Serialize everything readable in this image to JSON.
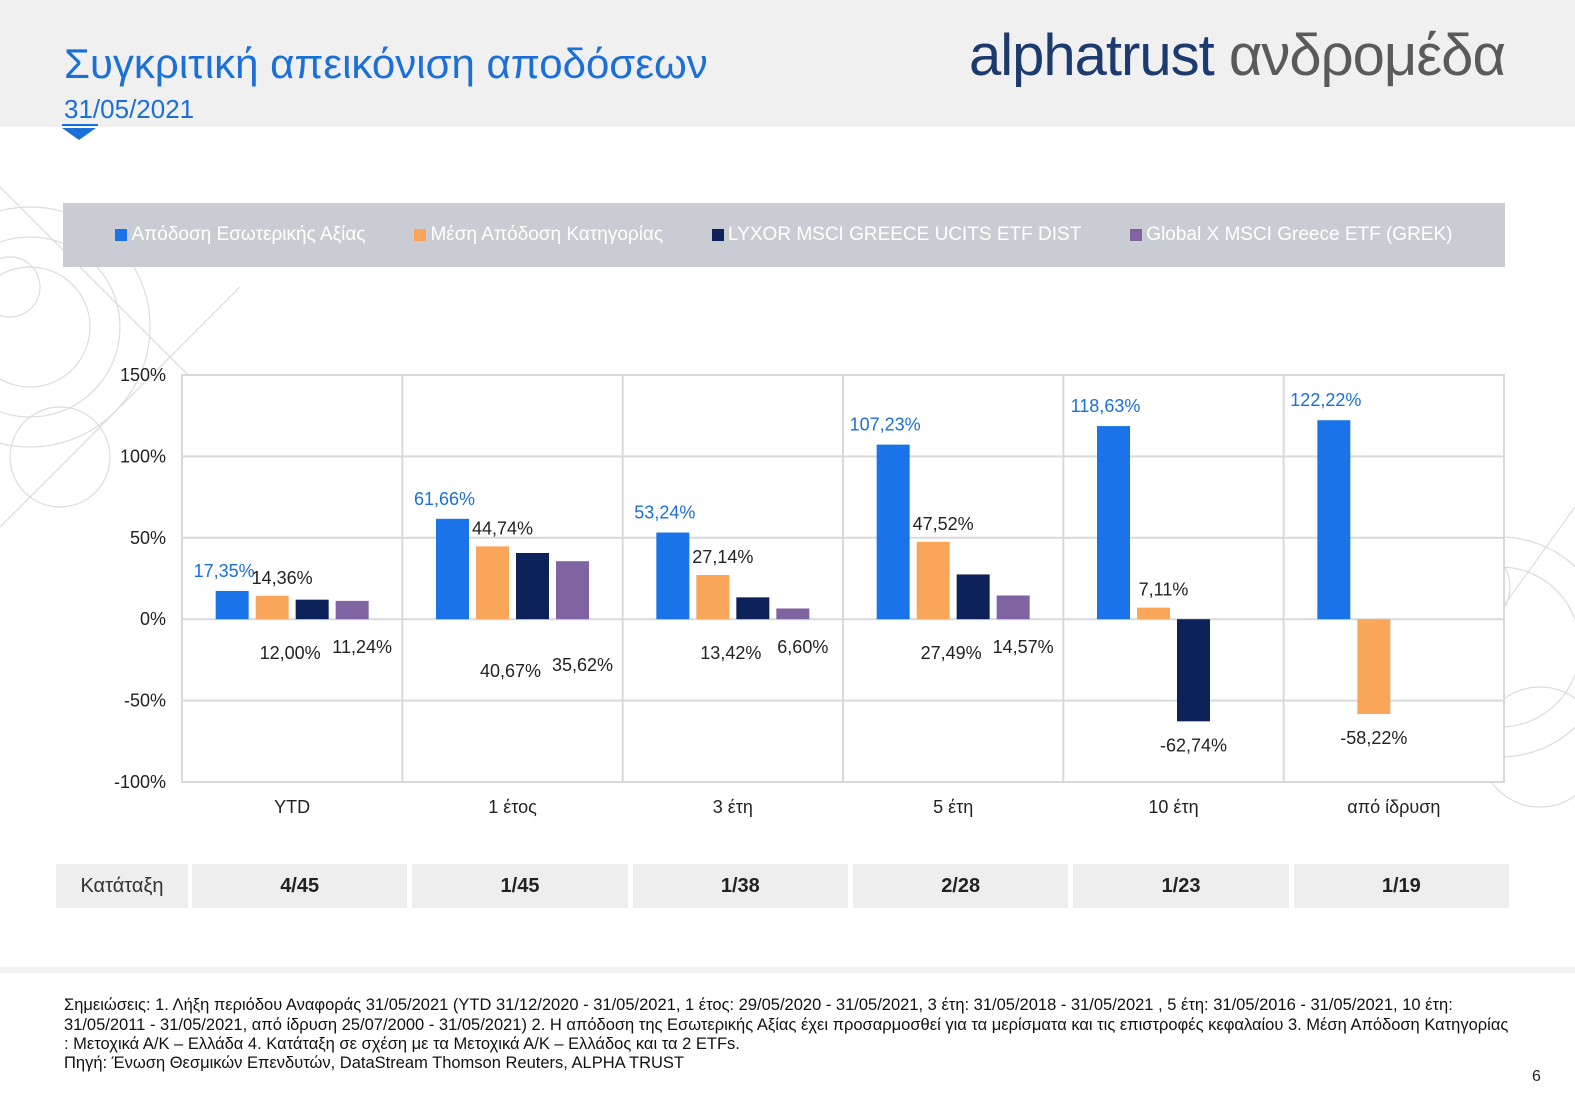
{
  "header": {
    "title": "Συγκριτική απεικόνιση αποδόσεων",
    "date": "31/05/2021",
    "brand_part1": "alphatrust",
    "brand_part2": " ανδρομέδα"
  },
  "chart_data": {
    "type": "bar",
    "categories": [
      "YTD",
      "1 έτος",
      "3 έτη",
      "5 έτη",
      "10 έτη",
      "από ίδρυση"
    ],
    "series": [
      {
        "name": "Απόδοση Εσωτερικής Αξίας",
        "color": "#1a73e8",
        "values": [
          17.35,
          61.66,
          53.24,
          107.23,
          118.63,
          122.22
        ],
        "labels": [
          "17,35%",
          "61,66%",
          "53,24%",
          "107,23%",
          "118,63%",
          "122,22%"
        ]
      },
      {
        "name": "Μέση Απόδοση Κατηγορίας",
        "color": "#f9a65a",
        "values": [
          14.36,
          44.74,
          27.14,
          47.52,
          7.11,
          -58.22
        ],
        "labels": [
          "14,36%",
          "44,74%",
          "27,14%",
          "47,52%",
          "7,11%",
          "-58,22%"
        ]
      },
      {
        "name": "LYXOR MSCI GREECE UCITS ETF DIST",
        "color": "#0d2258",
        "values": [
          12.0,
          40.67,
          13.42,
          27.49,
          -62.74,
          null
        ],
        "labels": [
          "12,00%",
          "40,67%",
          "13,42%",
          "27,49%",
          "-62,74%",
          ""
        ]
      },
      {
        "name": "Global X MSCI Greece ETF (GREK)",
        "color": "#8064a2",
        "values": [
          11.24,
          35.62,
          6.6,
          14.57,
          null,
          null
        ],
        "labels": [
          "11,24%",
          "35,62%",
          "6,60%",
          "14,57%",
          "",
          ""
        ]
      }
    ],
    "yticks": [
      "150%",
      "100%",
      "50%",
      "0%",
      "-50%",
      "-100%"
    ],
    "ylim": [
      -100,
      150
    ],
    "grid": true,
    "legend_position": "top"
  },
  "ranking": {
    "label": "Κατάταξη",
    "values": [
      "4/45",
      "1/45",
      "1/38",
      "2/28",
      "1/23",
      "1/19"
    ]
  },
  "notes": {
    "text": "Σημειώσεις: 1. Λήξη περιόδου Αναφοράς 31/05/2021 (YTD 31/12/2020 - 31/05/2021, 1 έτος: 29/05/2020 - 31/05/2021, 3 έτη: 31/05/2018 - 31/05/2021 , 5 έτη: 31/05/2016 - 31/05/2021, 10 έτη: 31/05/2011 - 31/05/2021, από ίδρυση 25/07/2000 - 31/05/2021) 2. Η απόδοση της Εσωτερικής Αξίας έχει προσαρμοσθεί για τα μερίσματα και τις επιστροφές κεφαλαίου 3. Μέση Απόδοση Κατηγορίας : Μετοχικά Α/Κ – Ελλάδα 4. Κατάταξη σε σχέση με τα Μετοχικά Α/Κ – Ελλάδος και τα 2 ETFs.",
    "source": "Πηγή: Ένωση Θεσμικών Επενδυτών, DataStream Thomson Reuters, ALPHA TRUST"
  },
  "page_number": "6"
}
